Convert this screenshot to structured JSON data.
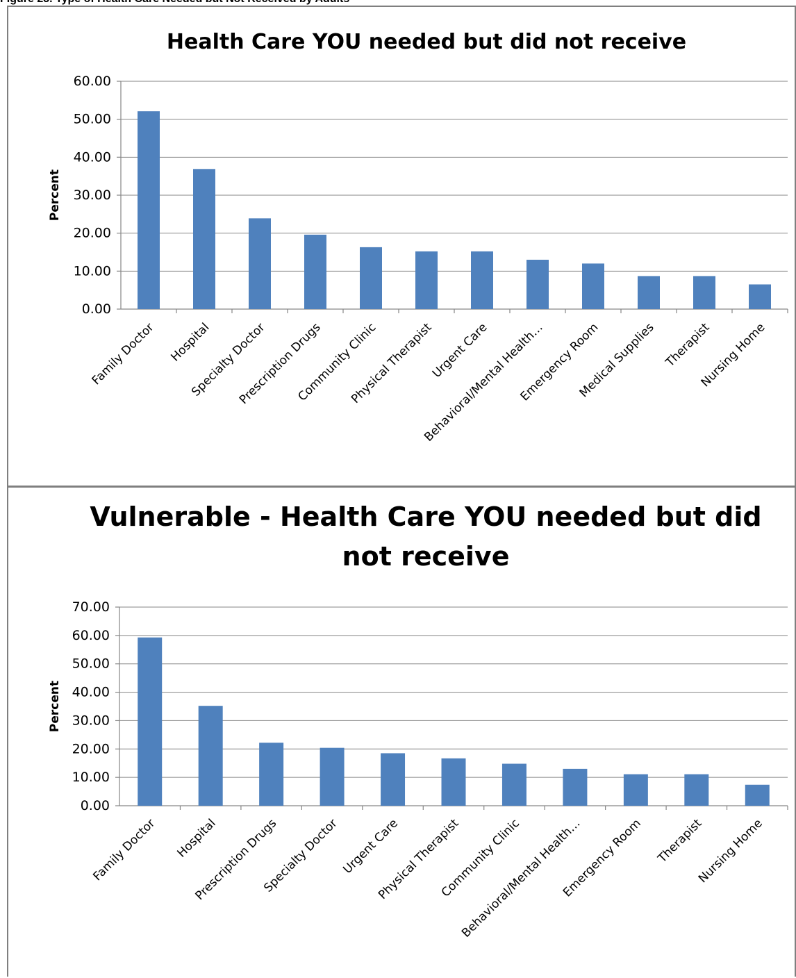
{
  "caption": "Figure 23. Type of Health Care Needed but Not Received by Adults",
  "colors": {
    "bar": "#4f81bd"
  },
  "chart_data": [
    {
      "type": "bar",
      "title": "Health Care YOU needed but did not receive",
      "title_lines": [
        "Health Care YOU needed but did not receive"
      ],
      "xlabel": "",
      "ylabel": "Percent",
      "ylim": [
        0,
        60
      ],
      "yticks": [
        "0.00",
        "10.00",
        "20.00",
        "30.00",
        "40.00",
        "50.00",
        "60.00"
      ],
      "categories": [
        "Family Doctor",
        "Hospital",
        "Specialty Doctor",
        "Prescription Drugs",
        "Community Clinic",
        "Physical Therapist",
        "Urgent Care",
        "Behavioral/Mental Health…",
        "Emergency Room",
        "Medical Supplies",
        "Therapist",
        "Nursing Home"
      ],
      "values": [
        52.1,
        36.9,
        23.9,
        19.6,
        16.3,
        15.2,
        15.2,
        13.0,
        12.0,
        8.7,
        8.7,
        6.5
      ],
      "grid": true,
      "legend": "none"
    },
    {
      "type": "bar",
      "title": "Vulnerable - Health Care YOU needed but did not receive",
      "title_lines": [
        "Vulnerable - Health Care YOU needed but did",
        "not receive"
      ],
      "xlabel": "",
      "ylabel": "Percent",
      "ylim": [
        0,
        70
      ],
      "yticks": [
        "0.00",
        "10.00",
        "20.00",
        "30.00",
        "40.00",
        "50.00",
        "60.00",
        "70.00"
      ],
      "categories": [
        "Family Doctor",
        "Hospital",
        "Prescription Drugs",
        "Specialty Doctor",
        "Urgent Care",
        "Physical Therapist",
        "Community Clinic",
        "Behavioral/Mental Health…",
        "Emergency Room",
        "Therapist",
        "Nursing Home"
      ],
      "values": [
        59.3,
        35.2,
        22.2,
        20.4,
        18.5,
        16.7,
        14.8,
        13.0,
        11.1,
        11.1,
        7.4
      ],
      "grid": true,
      "legend": "none"
    }
  ]
}
